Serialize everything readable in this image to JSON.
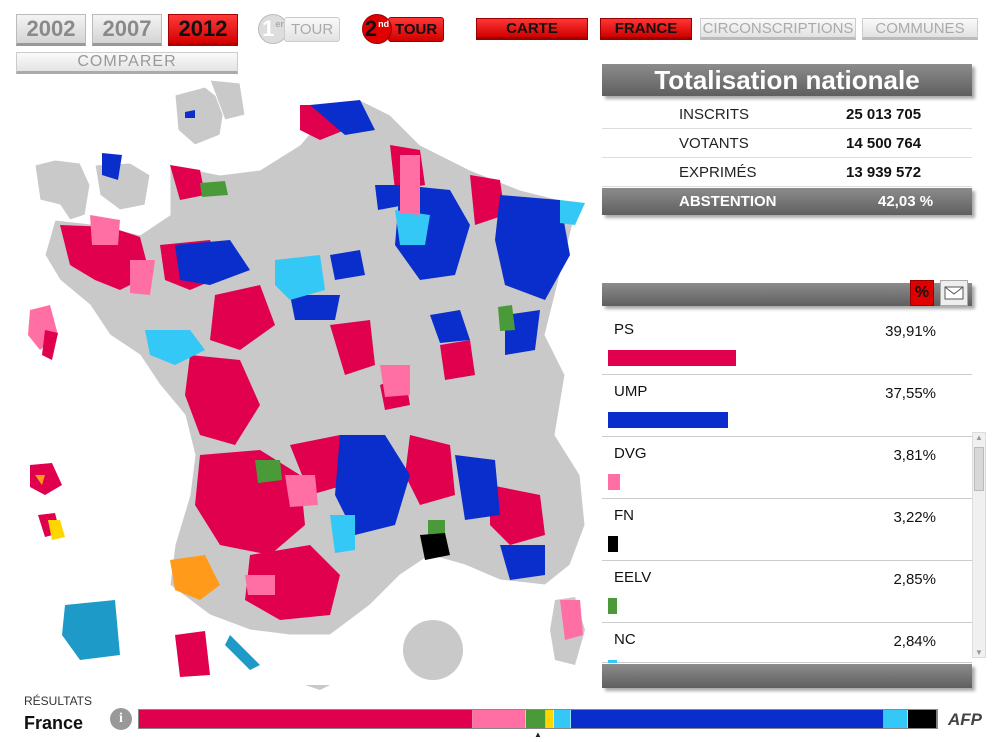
{
  "years": [
    {
      "label": "2002",
      "active": false
    },
    {
      "label": "2007",
      "active": false
    },
    {
      "label": "2012",
      "active": true
    }
  ],
  "compare_label": "COMPARER",
  "tours": [
    {
      "num": "1",
      "sup": "er",
      "label": "TOUR",
      "active": false
    },
    {
      "num": "2",
      "sup": "nd",
      "label": "TOUR",
      "active": true
    }
  ],
  "view_tabs": [
    "CARTE",
    "FRANCE",
    "CIRCONSCRIPTIONS",
    "COMMUNES"
  ],
  "totals": {
    "title": "Totalisation nationale",
    "rows": [
      {
        "key": "INSCRITS",
        "value": "25 013 705"
      },
      {
        "key": "VOTANTS",
        "value": "14 500 764"
      },
      {
        "key": "EXPRIMÉS",
        "value": "13 939 572"
      }
    ],
    "abstention_label": "ABSTENTION",
    "abstention_value": "42,03 %"
  },
  "results_icons": {
    "percent": "%",
    "mail": "mail-icon"
  },
  "parties": [
    {
      "name": "PS",
      "pct": "39,91%",
      "share": 39.91,
      "color": "#e0004d"
    },
    {
      "name": "UMP",
      "pct": "37,55%",
      "share": 37.55,
      "color": "#0a2ecc"
    },
    {
      "name": "DVG",
      "pct": "3,81%",
      "share": 3.81,
      "color": "#ff6fa3"
    },
    {
      "name": "FN",
      "pct": "3,22%",
      "share": 3.22,
      "color": "#000000"
    },
    {
      "name": "EELV",
      "pct": "2,85%",
      "share": 2.85,
      "color": "#4a9a3a"
    },
    {
      "name": "NC",
      "pct": "2,84%",
      "share": 2.84,
      "color": "#33c8f5"
    }
  ],
  "footer": {
    "resultats_label": "RÉSULTATS",
    "scope": "France",
    "logo": "AFP",
    "strip": [
      {
        "color": "#e0004d",
        "share": 41
      },
      {
        "color": "#ff6fa3",
        "share": 6.5
      },
      {
        "color": "#4a9a3a",
        "share": 2.5
      },
      {
        "color": "#ffd600",
        "share": 1
      },
      {
        "color": "#33c8f5",
        "share": 2
      },
      {
        "color": "#0a2ecc",
        "share": 38.5
      },
      {
        "color": "#33c8f5",
        "share": 3
      },
      {
        "color": "#000000",
        "share": 3.5
      }
    ]
  },
  "colors": {
    "ps": "#e0004d",
    "ump": "#0a2ecc",
    "dvg": "#ff6fa3",
    "fn": "#000000",
    "eelv": "#4a9a3a",
    "nc": "#33c8f5",
    "other": "#c9c9c9",
    "orange": "#ff9a1a",
    "yellow": "#ffd600"
  }
}
